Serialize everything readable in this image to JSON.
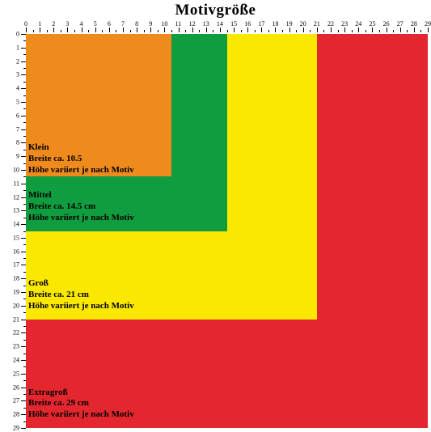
{
  "title": "Motivgröße",
  "ruler": {
    "max_cm": 29,
    "tick_color": "#000000"
  },
  "squares": [
    {
      "key": "extragross",
      "size_cm": 29,
      "color": "#e4272e",
      "name": "Extragroß",
      "width_text": "Breite ca. 29 cm",
      "height_text": "Höhe variiert je nach Motiv",
      "label_at_cm": 26
    },
    {
      "key": "gross",
      "size_cm": 21,
      "color": "#fbe800",
      "name": "Groß",
      "width_text": "Breite ca. 21 cm",
      "height_text": "Höhe variiert je nach Motiv",
      "label_at_cm": 18
    },
    {
      "key": "mittel",
      "size_cm": 14.5,
      "color": "#0f9d3f",
      "name": "Mittel",
      "width_text": "Breite ca. 14.5 cm",
      "height_text": "Höhe variiert je nach Motiv",
      "label_at_cm": 11.5
    },
    {
      "key": "klein",
      "size_cm": 10.5,
      "color": "#ef8b1c",
      "name": "Klein",
      "width_text": "Breite ca. 10.5",
      "height_text": "Höhe variiert je nach Motiv",
      "label_at_cm": 8
    }
  ],
  "colors": {
    "background": "#ffffff",
    "text": "#000000"
  },
  "typography": {
    "title_fontsize": 19,
    "label_fontsize": 11
  }
}
